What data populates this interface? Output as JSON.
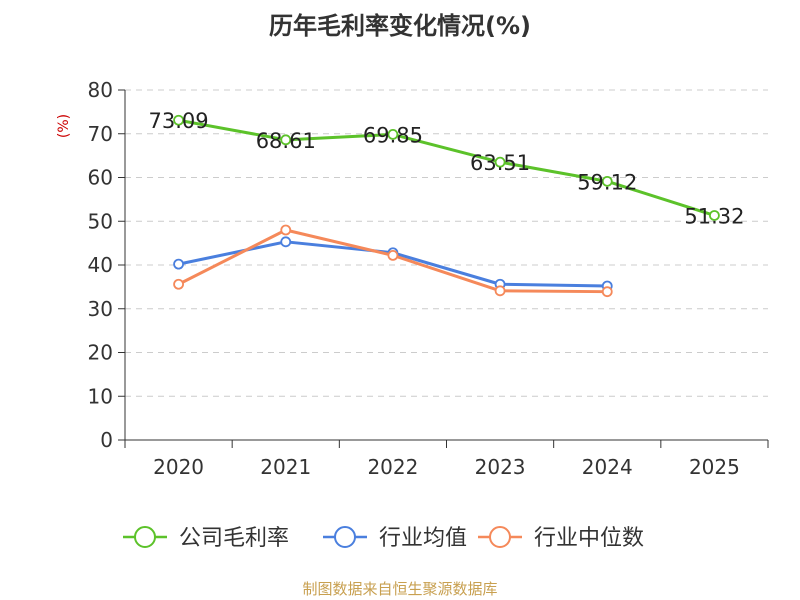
{
  "page": {
    "title": "历年毛利率变化情况(%)",
    "footer": "制图数据来自恒生聚源数据库"
  },
  "chart_data": {
    "type": "line",
    "title": "历年毛利率变化情况(%)",
    "ylabel": "(%)",
    "xlabel": "",
    "categories": [
      "2020",
      "2021",
      "2022",
      "2023",
      "2024",
      "2025"
    ],
    "ylim": [
      0,
      80
    ],
    "yticks": [
      0,
      10,
      20,
      30,
      40,
      50,
      60,
      70,
      80
    ],
    "grid": true,
    "legend_position": "bottom",
    "series": [
      {
        "name": "公司毛利率",
        "color": "#5cc22a",
        "values": [
          73.09,
          68.61,
          69.85,
          63.51,
          59.12,
          51.32
        ],
        "labels": [
          "73.09",
          "68.61",
          "69.85",
          "63.51",
          "59.12",
          "51.32"
        ],
        "show_labels": true
      },
      {
        "name": "行业均值",
        "color": "#4a7fde",
        "values": [
          40.2,
          45.3,
          42.8,
          35.6,
          35.2,
          null
        ],
        "show_labels": false
      },
      {
        "name": "行业中位数",
        "color": "#f5895a",
        "values": [
          35.6,
          48.0,
          42.2,
          34.1,
          33.9,
          null
        ],
        "show_labels": false
      }
    ]
  }
}
